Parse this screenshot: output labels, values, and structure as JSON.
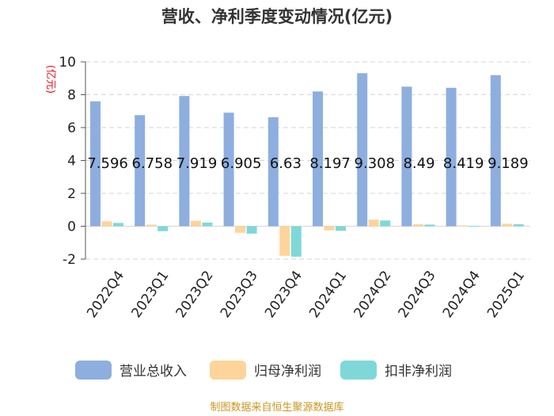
{
  "chart_data": {
    "type": "bar",
    "title": "营收、净利季度变动情况(亿元)",
    "ylabel": "(亿元)",
    "xlabel": "",
    "ylim": [
      -2,
      10
    ],
    "yticks": [
      -2,
      0,
      2,
      4,
      6,
      8,
      10
    ],
    "grid": true,
    "legend_position": "bottom",
    "categories": [
      "2022Q4",
      "2023Q1",
      "2023Q2",
      "2023Q3",
      "2023Q4",
      "2024Q1",
      "2024Q2",
      "2024Q3",
      "2024Q4",
      "2025Q1"
    ],
    "series": [
      {
        "name": "营业总收入",
        "color": "#8eaedf",
        "values": [
          7.596,
          6.758,
          7.919,
          6.905,
          6.63,
          8.197,
          9.308,
          8.49,
          8.419,
          9.189
        ]
      },
      {
        "name": "归母净利润",
        "color": "#fdd49a",
        "values": [
          0.3,
          0.1,
          0.33,
          -0.4,
          -1.8,
          -0.25,
          0.4,
          0.12,
          0.05,
          0.15
        ]
      },
      {
        "name": "扣非净利润",
        "color": "#7fd8d8",
        "values": [
          0.2,
          -0.3,
          0.22,
          -0.45,
          -1.85,
          -0.28,
          0.35,
          0.1,
          0.02,
          0.12
        ]
      }
    ],
    "data_labels": [
      "7.596",
      "6.758",
      "7.919",
      "6.905",
      "6.63",
      "8.197",
      "9.308",
      "8.49",
      "8.419",
      "9.189"
    ]
  },
  "footer": {
    "source": "制图数据来自恒生聚源数据库"
  }
}
